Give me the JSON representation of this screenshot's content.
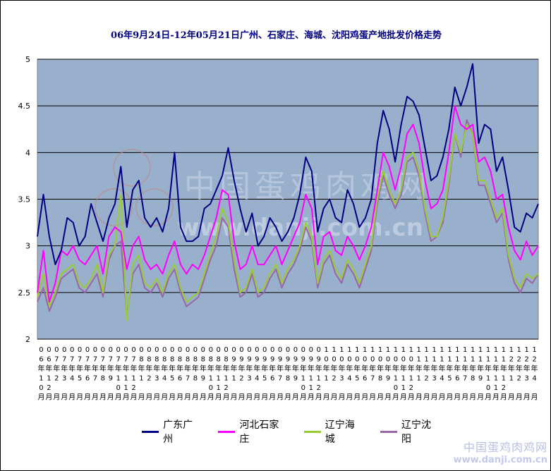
{
  "chart_data": {
    "type": "line",
    "title": "06年9月24日-12年05月21日广州、石家庄、海城、沈阳鸡蛋产地批发价格走势",
    "ylim": [
      2,
      5
    ],
    "yticks": [
      "2",
      "2.5",
      "3",
      "3.5",
      "4",
      "4.5",
      "5"
    ],
    "grid": true,
    "legend_position": "bottom",
    "x_ticks": [
      {
        "yy": "0",
        "y2": "6",
        "unit": "年",
        "m1": "1",
        "m2": "0",
        "mu": "月"
      },
      {
        "yy": "0",
        "y2": "6",
        "unit": "年",
        "m1": "1",
        "m2": "2",
        "mu": "月"
      },
      {
        "yy": "0",
        "y2": "7",
        "unit": "年",
        "m1": "2",
        "m2": "",
        "mu": "月"
      },
      {
        "yy": "0",
        "y2": "7",
        "unit": "年",
        "m1": "3",
        "m2": "",
        "mu": "月"
      },
      {
        "yy": "0",
        "y2": "7",
        "unit": "年",
        "m1": "4",
        "m2": "",
        "mu": "月"
      },
      {
        "yy": "0",
        "y2": "7",
        "unit": "年",
        "m1": "5",
        "m2": "",
        "mu": "月"
      },
      {
        "yy": "0",
        "y2": "7",
        "unit": "年",
        "m1": "6",
        "m2": "",
        "mu": "月"
      },
      {
        "yy": "0",
        "y2": "7",
        "unit": "年",
        "m1": "7",
        "m2": "",
        "mu": "月"
      },
      {
        "yy": "0",
        "y2": "7",
        "unit": "年",
        "m1": "8",
        "m2": "",
        "mu": "月"
      },
      {
        "yy": "0",
        "y2": "7",
        "unit": "年",
        "m1": "9",
        "m2": "",
        "mu": "月"
      },
      {
        "yy": "0",
        "y2": "7",
        "unit": "年",
        "m1": "1",
        "m2": "0",
        "mu": "月"
      },
      {
        "yy": "0",
        "y2": "7",
        "unit": "年",
        "m1": "1",
        "m2": "1",
        "mu": "月"
      },
      {
        "yy": "0",
        "y2": "7",
        "unit": "年",
        "m1": "1",
        "m2": "2",
        "mu": "月"
      },
      {
        "yy": "0",
        "y2": "8",
        "unit": "年",
        "m1": "1",
        "m2": "",
        "mu": "月"
      },
      {
        "yy": "0",
        "y2": "8",
        "unit": "年",
        "m1": "2",
        "m2": "",
        "mu": "月"
      },
      {
        "yy": "0",
        "y2": "8",
        "unit": "年",
        "m1": "3",
        "m2": "",
        "mu": "月"
      },
      {
        "yy": "0",
        "y2": "8",
        "unit": "年",
        "m1": "4",
        "m2": "",
        "mu": "月"
      },
      {
        "yy": "0",
        "y2": "8",
        "unit": "年",
        "m1": "5",
        "m2": "",
        "mu": "月"
      },
      {
        "yy": "0",
        "y2": "8",
        "unit": "年",
        "m1": "6",
        "m2": "",
        "mu": "月"
      },
      {
        "yy": "0",
        "y2": "8",
        "unit": "年",
        "m1": "7",
        "m2": "",
        "mu": "月"
      },
      {
        "yy": "0",
        "y2": "8",
        "unit": "年",
        "m1": "8",
        "m2": "",
        "mu": "月"
      },
      {
        "yy": "0",
        "y2": "8",
        "unit": "年",
        "m1": "9",
        "m2": "",
        "mu": "月"
      },
      {
        "yy": "0",
        "y2": "8",
        "unit": "年",
        "m1": "1",
        "m2": "0",
        "mu": "月"
      },
      {
        "yy": "0",
        "y2": "8",
        "unit": "年",
        "m1": "1",
        "m2": "1",
        "mu": "月"
      },
      {
        "yy": "0",
        "y2": "8",
        "unit": "年",
        "m1": "1",
        "m2": "2",
        "mu": "月"
      },
      {
        "yy": "0",
        "y2": "9",
        "unit": "年",
        "m1": "1",
        "m2": "",
        "mu": "月"
      },
      {
        "yy": "0",
        "y2": "9",
        "unit": "年",
        "m1": "2",
        "m2": "",
        "mu": "月"
      },
      {
        "yy": "0",
        "y2": "9",
        "unit": "年",
        "m1": "3",
        "m2": "",
        "mu": "月"
      },
      {
        "yy": "0",
        "y2": "9",
        "unit": "年",
        "m1": "4",
        "m2": "",
        "mu": "月"
      },
      {
        "yy": "0",
        "y2": "9",
        "unit": "年",
        "m1": "5",
        "m2": "",
        "mu": "月"
      },
      {
        "yy": "0",
        "y2": "9",
        "unit": "年",
        "m1": "6",
        "m2": "",
        "mu": "月"
      },
      {
        "yy": "0",
        "y2": "9",
        "unit": "年",
        "m1": "7",
        "m2": "",
        "mu": "月"
      },
      {
        "yy": "0",
        "y2": "9",
        "unit": "年",
        "m1": "8",
        "m2": "",
        "mu": "月"
      },
      {
        "yy": "0",
        "y2": "9",
        "unit": "年",
        "m1": "9",
        "m2": "",
        "mu": "月"
      },
      {
        "yy": "0",
        "y2": "9",
        "unit": "年",
        "m1": "1",
        "m2": "0",
        "mu": "月"
      },
      {
        "yy": "0",
        "y2": "9",
        "unit": "年",
        "m1": "1",
        "m2": "1",
        "mu": "月"
      },
      {
        "yy": "0",
        "y2": "9",
        "unit": "年",
        "m1": "1",
        "m2": "2",
        "mu": "月"
      },
      {
        "yy": "1",
        "y2": "0",
        "unit": "年",
        "m1": "1",
        "m2": "",
        "mu": "月"
      },
      {
        "yy": "1",
        "y2": "0",
        "unit": "年",
        "m1": "2",
        "m2": "",
        "mu": "月"
      },
      {
        "yy": "1",
        "y2": "0",
        "unit": "年",
        "m1": "3",
        "m2": "",
        "mu": "月"
      },
      {
        "yy": "1",
        "y2": "0",
        "unit": "年",
        "m1": "4",
        "m2": "",
        "mu": "月"
      },
      {
        "yy": "1",
        "y2": "0",
        "unit": "年",
        "m1": "5",
        "m2": "",
        "mu": "月"
      },
      {
        "yy": "1",
        "y2": "0",
        "unit": "年",
        "m1": "6",
        "m2": "",
        "mu": "月"
      },
      {
        "yy": "1",
        "y2": "0",
        "unit": "年",
        "m1": "7",
        "m2": "",
        "mu": "月"
      },
      {
        "yy": "1",
        "y2": "0",
        "unit": "年",
        "m1": "8",
        "m2": "",
        "mu": "月"
      },
      {
        "yy": "1",
        "y2": "0",
        "unit": "年",
        "m1": "9",
        "m2": "",
        "mu": "月"
      },
      {
        "yy": "1",
        "y2": "0",
        "unit": "年",
        "m1": "1",
        "m2": "0",
        "mu": "月"
      },
      {
        "yy": "1",
        "y2": "0",
        "unit": "年",
        "m1": "1",
        "m2": "1",
        "mu": "月"
      },
      {
        "yy": "1",
        "y2": "0",
        "unit": "年",
        "m1": "1",
        "m2": "2",
        "mu": "月"
      },
      {
        "yy": "1",
        "y2": "1",
        "unit": "年",
        "m1": "1",
        "m2": "",
        "mu": "月"
      },
      {
        "yy": "1",
        "y2": "1",
        "unit": "年",
        "m1": "2",
        "m2": "",
        "mu": "月"
      },
      {
        "yy": "1",
        "y2": "1",
        "unit": "年",
        "m1": "3",
        "m2": "",
        "mu": "月"
      },
      {
        "yy": "1",
        "y2": "1",
        "unit": "年",
        "m1": "4",
        "m2": "",
        "mu": "月"
      },
      {
        "yy": "1",
        "y2": "1",
        "unit": "年",
        "m1": "5",
        "m2": "",
        "mu": "月"
      },
      {
        "yy": "1",
        "y2": "1",
        "unit": "年",
        "m1": "6",
        "m2": "",
        "mu": "月"
      },
      {
        "yy": "1",
        "y2": "1",
        "unit": "年",
        "m1": "7",
        "m2": "",
        "mu": "月"
      },
      {
        "yy": "1",
        "y2": "1",
        "unit": "年",
        "m1": "8",
        "m2": "",
        "mu": "月"
      },
      {
        "yy": "1",
        "y2": "1",
        "unit": "年",
        "m1": "9",
        "m2": "",
        "mu": "月"
      },
      {
        "yy": "1",
        "y2": "1",
        "unit": "年",
        "m1": "1",
        "m2": "0",
        "mu": "月"
      },
      {
        "yy": "1",
        "y2": "1",
        "unit": "年",
        "m1": "1",
        "m2": "1",
        "mu": "月"
      },
      {
        "yy": "1",
        "y2": "1",
        "unit": "年",
        "m1": "1",
        "m2": "2",
        "mu": "月"
      },
      {
        "yy": "1",
        "y2": "2",
        "unit": "年",
        "m1": "1",
        "m2": "",
        "mu": "月"
      },
      {
        "yy": "1",
        "y2": "2",
        "unit": "年",
        "m1": "2",
        "m2": "",
        "mu": "月"
      },
      {
        "yy": "1",
        "y2": "2",
        "unit": "年",
        "m1": "3",
        "m2": "",
        "mu": "月"
      },
      {
        "yy": "1",
        "y2": "2",
        "unit": "年",
        "m1": "4",
        "m2": "",
        "mu": "月"
      }
    ],
    "series": [
      {
        "name": "广东广州",
        "color": "#000080",
        "values": [
          3.1,
          3.55,
          3.1,
          2.8,
          2.95,
          3.3,
          3.25,
          3.0,
          3.1,
          3.45,
          3.25,
          3.05,
          3.3,
          3.45,
          3.85,
          3.2,
          3.6,
          3.7,
          3.3,
          3.2,
          3.3,
          3.15,
          3.4,
          4.0,
          3.2,
          3.05,
          3.05,
          3.1,
          3.4,
          3.45,
          3.6,
          3.75,
          4.05,
          3.7,
          3.4,
          3.15,
          3.35,
          3.0,
          3.1,
          3.3,
          3.2,
          3.05,
          3.15,
          3.3,
          3.55,
          3.95,
          3.8,
          3.15,
          3.4,
          3.5,
          3.3,
          3.25,
          3.6,
          3.45,
          3.2,
          3.3,
          3.5,
          4.1,
          4.45,
          4.25,
          3.9,
          4.3,
          4.6,
          4.55,
          4.4,
          4.05,
          3.7,
          3.75,
          3.95,
          4.25,
          4.7,
          4.5,
          4.7,
          4.95,
          4.1,
          4.3,
          4.25,
          3.8,
          3.95,
          3.6,
          3.2,
          3.15,
          3.35,
          3.3,
          3.45
        ]
      },
      {
        "name": "河北石家庄",
        "color": "#ff00ff",
        "values": [
          2.5,
          2.95,
          2.4,
          2.6,
          2.95,
          2.9,
          3.0,
          2.85,
          2.8,
          2.9,
          3.0,
          2.7,
          3.1,
          3.2,
          3.15,
          2.75,
          3.0,
          3.1,
          2.85,
          2.75,
          2.8,
          2.7,
          2.9,
          3.05,
          2.8,
          2.7,
          2.8,
          2.75,
          2.9,
          3.1,
          3.3,
          3.6,
          3.55,
          3.05,
          2.75,
          2.8,
          3.0,
          2.8,
          2.8,
          2.9,
          3.0,
          2.8,
          2.95,
          3.1,
          3.25,
          3.55,
          3.4,
          2.8,
          3.1,
          3.15,
          2.95,
          2.9,
          3.1,
          3.0,
          2.85,
          3.0,
          3.2,
          3.6,
          4.0,
          3.85,
          3.6,
          3.85,
          4.2,
          4.3,
          4.1,
          3.7,
          3.4,
          3.45,
          3.6,
          4.0,
          4.5,
          4.3,
          4.25,
          4.3,
          3.9,
          3.95,
          3.8,
          3.5,
          3.55,
          3.2,
          2.95,
          2.85,
          3.05,
          2.9,
          3.0
        ]
      },
      {
        "name": "辽宁海城",
        "color": "#99cc33",
        "values": [
          2.45,
          2.7,
          2.35,
          2.5,
          2.7,
          2.75,
          2.8,
          2.6,
          2.55,
          2.65,
          2.8,
          2.5,
          2.9,
          3.0,
          3.55,
          2.2,
          2.8,
          2.9,
          2.6,
          2.55,
          2.65,
          2.5,
          2.7,
          2.8,
          2.55,
          2.4,
          2.45,
          2.5,
          2.7,
          2.9,
          3.1,
          3.4,
          3.25,
          2.85,
          2.5,
          2.55,
          2.75,
          2.5,
          2.55,
          2.7,
          2.8,
          2.6,
          2.75,
          2.85,
          3.0,
          3.25,
          3.1,
          2.6,
          2.85,
          2.95,
          2.75,
          2.65,
          2.85,
          2.75,
          2.6,
          2.8,
          3.0,
          3.5,
          3.8,
          3.6,
          3.45,
          3.6,
          3.95,
          4.0,
          3.8,
          3.4,
          3.1,
          3.1,
          3.3,
          3.7,
          4.2,
          4.0,
          4.3,
          4.2,
          3.7,
          3.7,
          3.5,
          3.3,
          3.4,
          2.9,
          2.65,
          2.55,
          2.7,
          2.65,
          2.7
        ]
      },
      {
        "name": "辽宁沈阳",
        "color": "#9966aa",
        "values": [
          2.4,
          2.55,
          2.3,
          2.45,
          2.65,
          2.7,
          2.75,
          2.55,
          2.5,
          2.6,
          2.7,
          2.45,
          2.85,
          3.0,
          3.05,
          2.25,
          2.7,
          2.8,
          2.55,
          2.5,
          2.6,
          2.45,
          2.65,
          2.75,
          2.5,
          2.35,
          2.4,
          2.45,
          2.65,
          2.85,
          3.0,
          3.3,
          3.2,
          2.75,
          2.45,
          2.5,
          2.7,
          2.45,
          2.5,
          2.65,
          2.75,
          2.55,
          2.7,
          2.8,
          2.95,
          3.2,
          3.05,
          2.55,
          2.8,
          2.9,
          2.7,
          2.6,
          2.8,
          2.7,
          2.55,
          2.75,
          2.95,
          3.45,
          3.75,
          3.55,
          3.4,
          3.55,
          3.9,
          3.95,
          3.75,
          3.35,
          3.05,
          3.1,
          3.25,
          3.65,
          4.2,
          3.95,
          4.35,
          4.2,
          3.65,
          3.65,
          3.45,
          3.25,
          3.35,
          2.85,
          2.6,
          2.5,
          2.65,
          2.6,
          2.7
        ]
      }
    ]
  },
  "watermark": {
    "main_cn": "中国蛋鸡肉鸡网",
    "main_url": "www.danji.com.cn",
    "corner_cn": "中国蛋鸡肉鸡网",
    "corner_url": "www.danji.com.cn"
  }
}
